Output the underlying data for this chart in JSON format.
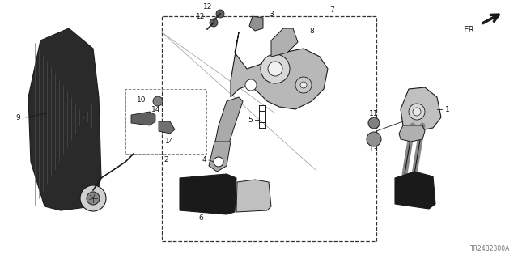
{
  "diagram_code": "TR24B2300A",
  "background_color": "#ffffff",
  "line_color": "#1a1a1a",
  "figsize": [
    6.4,
    3.2
  ],
  "dpi": 100,
  "fr_text": "FR.",
  "label_fontsize": 6.5
}
